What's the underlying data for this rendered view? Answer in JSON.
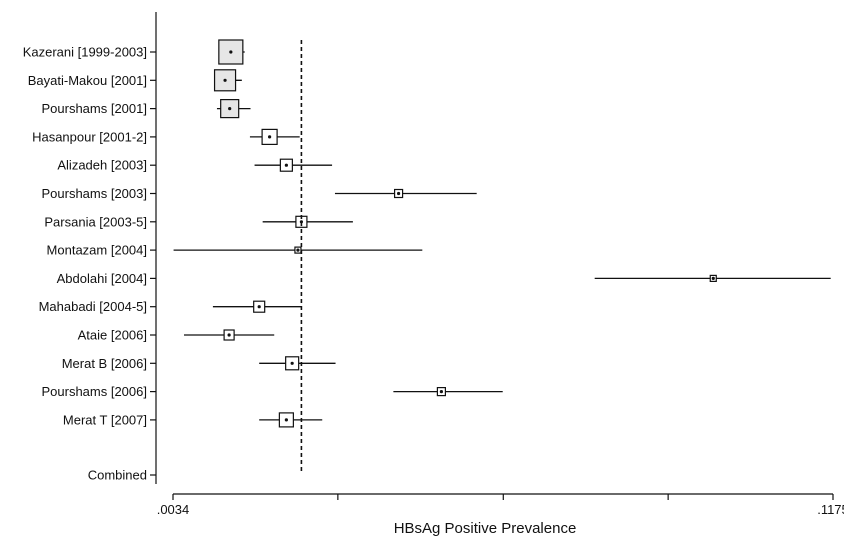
{
  "chart_data": {
    "type": "forest",
    "title": "",
    "xlabel": "HBsAg Positive Prevalence",
    "xlim": [
      0.0034,
      0.1175
    ],
    "x_tick_labels": [
      ".0034",
      "",
      "",
      "",
      ".1175"
    ],
    "x_ticks": [
      0.0034,
      0.0319,
      0.0605,
      0.089,
      0.1175
    ],
    "pooled_estimate": 0.0256,
    "studies": [
      {
        "label": "Kazerani [1999-2003]",
        "estimate": 0.0134,
        "lower": 0.0113,
        "upper": 0.0158,
        "weight": 1.0
      },
      {
        "label": "Bayati-Makou [2001]",
        "estimate": 0.0124,
        "lower": 0.0108,
        "upper": 0.0153,
        "weight": 0.85
      },
      {
        "label": "Pourshams [2001]",
        "estimate": 0.0132,
        "lower": 0.011,
        "upper": 0.0168,
        "weight": 0.7
      },
      {
        "label": "Hasanpour [2001-2]",
        "estimate": 0.0201,
        "lower": 0.0167,
        "upper": 0.0253,
        "weight": 0.55
      },
      {
        "label": "Alizadeh [2003]",
        "estimate": 0.023,
        "lower": 0.0175,
        "upper": 0.0309,
        "weight": 0.4
      },
      {
        "label": "Pourshams [2003]",
        "estimate": 0.0424,
        "lower": 0.0314,
        "upper": 0.0559,
        "weight": 0.2
      },
      {
        "label": "Parsania [2003-5]",
        "estimate": 0.0256,
        "lower": 0.0189,
        "upper": 0.0345,
        "weight": 0.35
      },
      {
        "label": "Montazam [2004]",
        "estimate": 0.025,
        "lower": 0.0035,
        "upper": 0.0465,
        "weight": 0.1
      },
      {
        "label": "Abdolahi [2004]",
        "estimate": 0.0968,
        "lower": 0.0763,
        "upper": 0.1171,
        "weight": 0.1
      },
      {
        "label": "Mahabadi [2004-5]",
        "estimate": 0.0183,
        "lower": 0.0103,
        "upper": 0.0256,
        "weight": 0.35
      },
      {
        "label": "Ataie [2006]",
        "estimate": 0.0131,
        "lower": 0.0053,
        "upper": 0.0209,
        "weight": 0.3
      },
      {
        "label": "Merat B [2006]",
        "estimate": 0.024,
        "lower": 0.0183,
        "upper": 0.0315,
        "weight": 0.45
      },
      {
        "label": "Pourshams [2006]",
        "estimate": 0.0498,
        "lower": 0.0415,
        "upper": 0.0604,
        "weight": 0.2
      },
      {
        "label": "Merat T [2007]",
        "estimate": 0.023,
        "lower": 0.0183,
        "upper": 0.0292,
        "weight": 0.5
      }
    ],
    "combined_label": "Combined"
  }
}
